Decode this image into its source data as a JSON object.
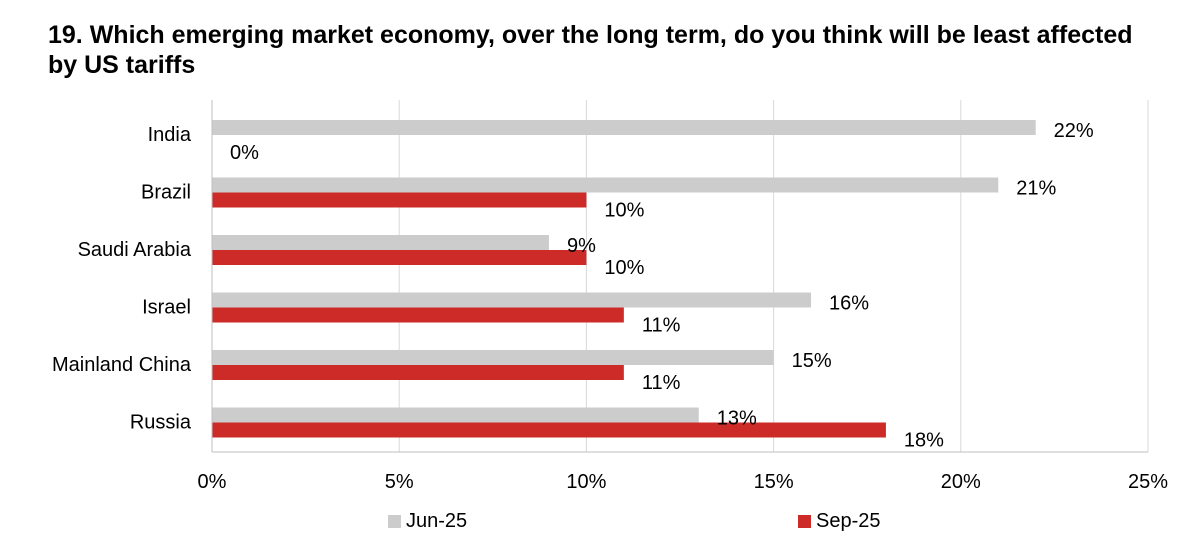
{
  "chart_data": {
    "type": "bar",
    "orientation": "horizontal",
    "title": "19. Which emerging market economy, over the long term, do you think will be least affected by US tariffs",
    "categories": [
      "India",
      "Brazil",
      "Saudi Arabia",
      "Israel",
      "Mainland China",
      "Russia"
    ],
    "series": [
      {
        "name": "Jun-25",
        "color": "#cccccc",
        "values": [
          22,
          21,
          9,
          16,
          15,
          13
        ]
      },
      {
        "name": "Sep-25",
        "color": "#cc2b27",
        "values": [
          0,
          10,
          10,
          11,
          11,
          18
        ]
      }
    ],
    "value_suffix": "%",
    "xlim": [
      0,
      25
    ],
    "xticks": [
      0,
      5,
      10,
      15,
      20,
      25
    ],
    "xtick_labels": [
      "0%",
      "5%",
      "10%",
      "15%",
      "20%",
      "25%"
    ],
    "xlabel": "",
    "ylabel": "",
    "grid": true,
    "legend_position": "bottom"
  }
}
